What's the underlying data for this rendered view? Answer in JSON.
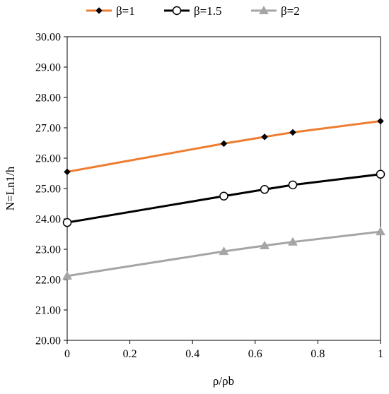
{
  "chart_data": {
    "type": "line",
    "xlabel": "ρ/ρb",
    "ylabel": "N=Ln1/h",
    "xlim": [
      0,
      1
    ],
    "ylim": [
      20,
      30
    ],
    "x_ticks": [
      "0",
      "0.2",
      "0.4",
      "0.6",
      "0.8",
      "1"
    ],
    "y_ticks": [
      "20.00",
      "21.00",
      "22.00",
      "23.00",
      "24.00",
      "25.00",
      "26.00",
      "27.00",
      "28.00",
      "29.00",
      "30.00"
    ],
    "grid": false,
    "legend_position": "top",
    "x": [
      0,
      0.5,
      0.63,
      0.72,
      1
    ],
    "series": [
      {
        "name": "β=1",
        "values": [
          25.55,
          26.48,
          26.7,
          26.85,
          27.22
        ],
        "color": "#ED7D31",
        "marker": "diamond"
      },
      {
        "name": "β=1.5",
        "values": [
          23.88,
          24.75,
          24.97,
          25.12,
          25.47
        ],
        "color": "#000000",
        "marker": "circle"
      },
      {
        "name": "β=2",
        "values": [
          22.12,
          22.93,
          23.12,
          23.24,
          23.58
        ],
        "color": "#A5A5A5",
        "marker": "triangle"
      }
    ]
  }
}
